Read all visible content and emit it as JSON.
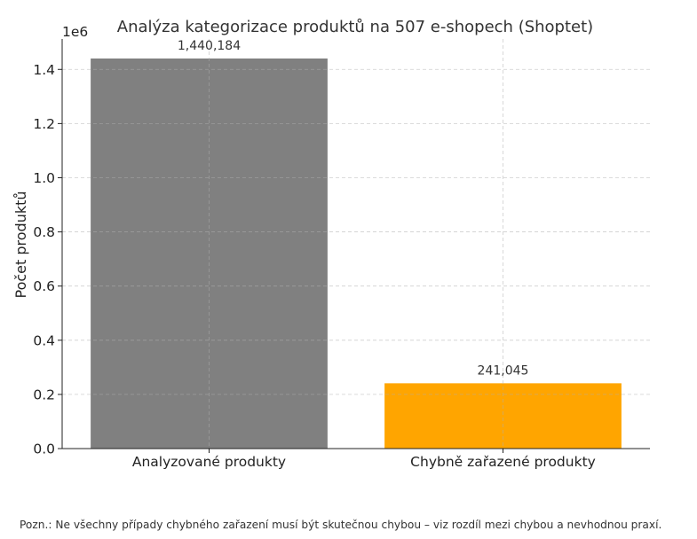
{
  "chart_data": {
    "type": "bar",
    "title": "Analýza kategorizace produktů na 507 e-shopech (Shoptet)",
    "xlabel": "",
    "ylabel": "Počet produktů",
    "categories": [
      "Analyzované produkty",
      "Chybně zařazené produkty"
    ],
    "values": [
      1440184,
      241045
    ],
    "data_labels": [
      "1,440,184",
      "241,045"
    ],
    "colors": [
      "#808080",
      "#ffa500"
    ],
    "ylim": [
      0,
      1512193
    ],
    "y_ticks": [
      0,
      200000,
      400000,
      600000,
      800000,
      1000000,
      1200000,
      1400000
    ],
    "y_tick_labels": [
      "0.0",
      "0.2",
      "0.4",
      "0.6",
      "0.8",
      "1.0",
      "1.2",
      "1.4"
    ],
    "y_offset_label": "1e6",
    "grid": true,
    "grid_style": "dashed",
    "legend": "none"
  },
  "note": "Pozn.: Ne všechny případy chybného zařazení musí být skutečnou chybou – viz rozdíl mezi chybou a nevhodnou praxí."
}
